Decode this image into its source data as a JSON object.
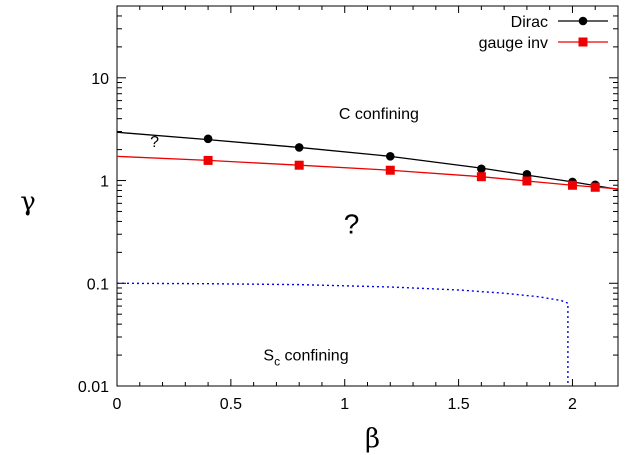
{
  "chart_data": {
    "type": "line",
    "xlabel": "β",
    "ylabel": "γ",
    "xlim": [
      0,
      2.2
    ],
    "ylim": [
      0.01,
      50
    ],
    "yscale": "log",
    "grid": false,
    "legend_position": "top-right",
    "x_ticks": [
      {
        "value": 0,
        "label": "0"
      },
      {
        "value": 0.5,
        "label": "0.5"
      },
      {
        "value": 1,
        "label": "1"
      },
      {
        "value": 1.5,
        "label": "1.5"
      },
      {
        "value": 2,
        "label": "2"
      }
    ],
    "y_ticks": [
      {
        "value": 0.01,
        "label": "0.01"
      },
      {
        "value": 0.1,
        "label": "0.1"
      },
      {
        "value": 1,
        "label": "1"
      },
      {
        "value": 10,
        "label": "10"
      }
    ],
    "series": [
      {
        "name": "Dirac",
        "color": "#000000",
        "marker": "circle",
        "points": [
          [
            0.4,
            2.55
          ],
          [
            0.8,
            2.1
          ],
          [
            1.2,
            1.72
          ],
          [
            1.6,
            1.3
          ],
          [
            1.8,
            1.15
          ],
          [
            2.0,
            0.97
          ],
          [
            2.1,
            0.91
          ]
        ],
        "fit_line": [
          [
            0,
            2.95
          ],
          [
            0.4,
            2.5
          ],
          [
            0.8,
            2.1
          ],
          [
            1.2,
            1.72
          ],
          [
            1.6,
            1.32
          ],
          [
            1.8,
            1.13
          ],
          [
            2.0,
            0.97
          ],
          [
            2.2,
            0.82
          ]
        ]
      },
      {
        "name": "gauge inv",
        "color": "#ee0000",
        "marker": "square",
        "points": [
          [
            0.4,
            1.57
          ],
          [
            0.8,
            1.41
          ],
          [
            1.2,
            1.26
          ],
          [
            1.6,
            1.09
          ],
          [
            1.8,
            0.99
          ],
          [
            2.0,
            0.9
          ],
          [
            2.1,
            0.86
          ]
        ],
        "fit_line": [
          [
            0,
            1.72
          ],
          [
            0.4,
            1.57
          ],
          [
            0.8,
            1.41
          ],
          [
            1.2,
            1.26
          ],
          [
            1.6,
            1.09
          ],
          [
            1.8,
            0.99
          ],
          [
            2.0,
            0.9
          ],
          [
            2.2,
            0.83
          ]
        ]
      },
      {
        "color": "#0000ee",
        "style": "dotted",
        "points": [
          [
            0,
            0.1
          ],
          [
            0.4,
            0.099
          ],
          [
            0.8,
            0.097
          ],
          [
            1.2,
            0.092
          ],
          [
            1.5,
            0.086
          ],
          [
            1.7,
            0.08
          ],
          [
            1.85,
            0.074
          ],
          [
            1.95,
            0.068
          ],
          [
            1.98,
            0.064
          ],
          [
            1.98,
            0.01
          ]
        ]
      }
    ],
    "annotations": [
      {
        "text": "C confining",
        "x": 1.15,
        "y": 4.5,
        "size": "normal"
      },
      {
        "text": "?",
        "x": 0.165,
        "y": 2.4,
        "size": "normal"
      },
      {
        "text": "?",
        "x": 1.03,
        "y": 0.38,
        "size": "large"
      },
      {
        "text": "S",
        "subscript": "c",
        "suffix": " confining",
        "x": 0.83,
        "y": 0.02,
        "size": "normal"
      }
    ]
  }
}
